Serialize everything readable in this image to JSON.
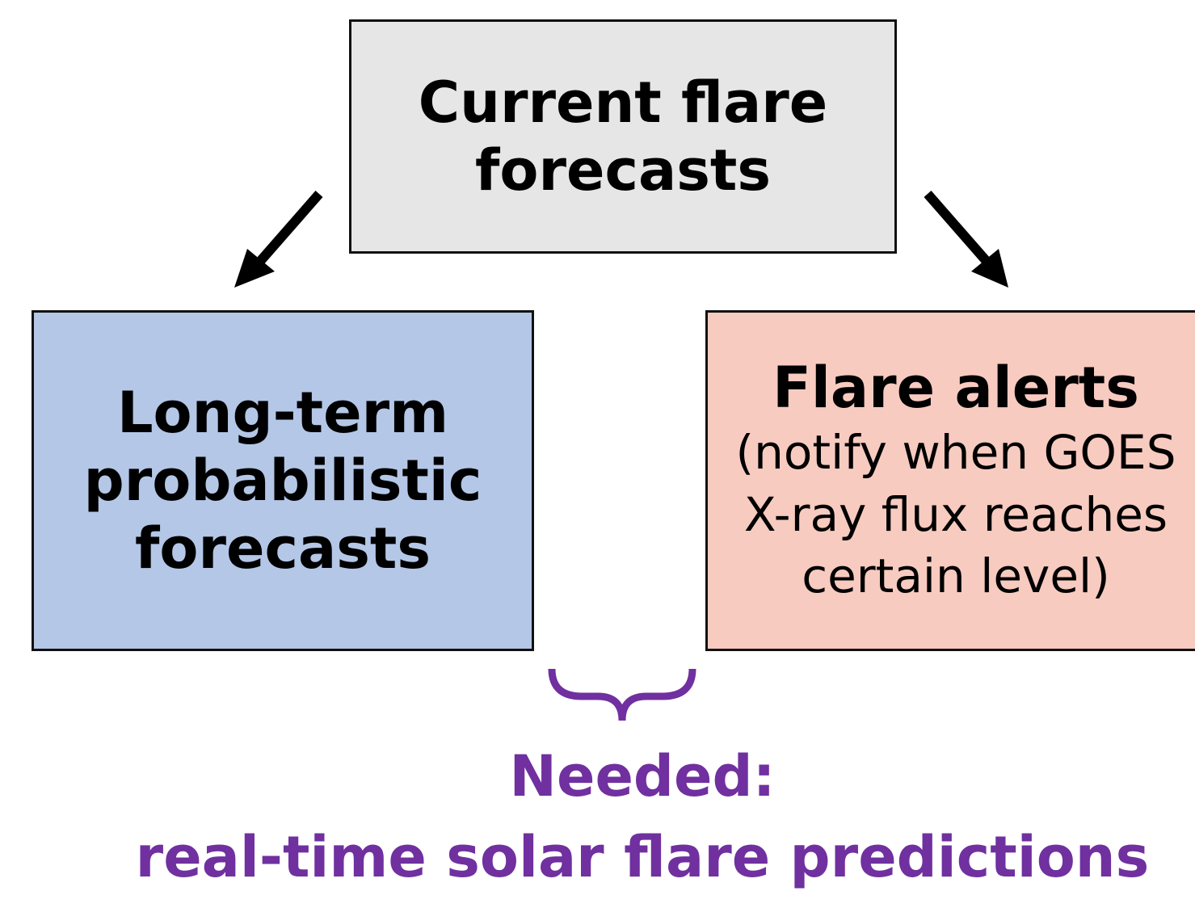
{
  "nodes": [
    {
      "label": "Current flare forecasts"
    },
    {
      "label": "Long-term probabilistic forecasts"
    },
    {
      "label": "Flare alerts",
      "note": "(notify when GOES X-ray flux reaches certain level)"
    }
  ],
  "conclusion": {
    "heading": "Needed:",
    "text": "real-time solar flare predictions"
  }
}
